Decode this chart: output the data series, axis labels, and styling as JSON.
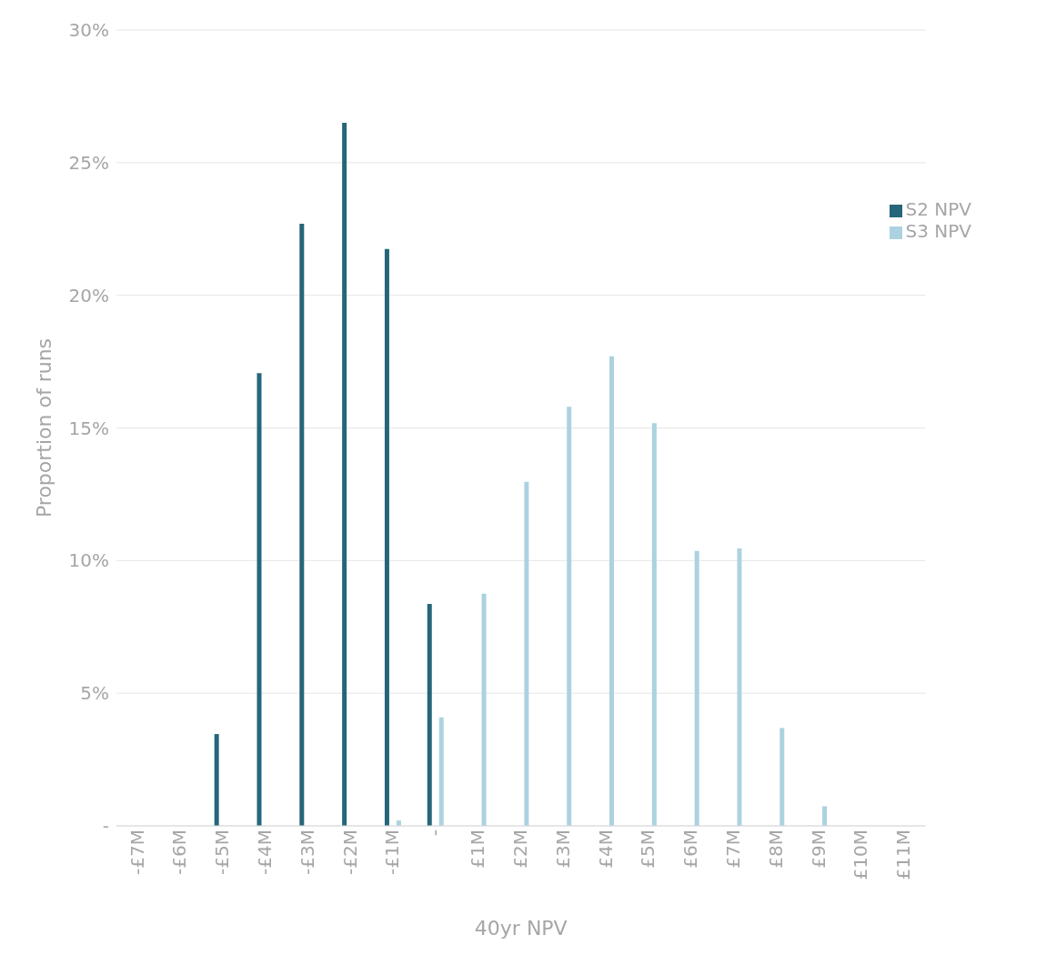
{
  "chart_data": {
    "type": "bar",
    "xlabel": "40yr NPV",
    "ylabel": "Proportion of runs",
    "categories": [
      "-£7M",
      "-£6M",
      "-£5M",
      "-£4M",
      "-£3M",
      "-£2M",
      "-£1M",
      "-",
      "£1M",
      "£2M",
      "£3M",
      "£4M",
      "£5M",
      "£6M",
      "£7M",
      "£8M",
      "£9M",
      "£10M",
      "£11M"
    ],
    "series": [
      {
        "name": "S2 NPV",
        "color": "#26667a",
        "values": [
          0,
          0,
          3.46,
          17.07,
          22.7,
          26.5,
          21.75,
          8.37,
          0,
          0,
          0,
          0,
          0,
          0,
          0,
          0,
          0,
          0,
          0
        ]
      },
      {
        "name": "S3 NPV",
        "color": "#acd2df",
        "values": [
          0,
          0,
          0,
          0,
          0,
          0,
          0.2,
          4.09,
          8.75,
          12.97,
          15.8,
          17.7,
          15.18,
          10.36,
          10.46,
          3.69,
          0.74,
          0,
          0
        ]
      }
    ],
    "ylim": [
      0,
      30
    ],
    "yticks": [
      {
        "value": 0,
        "label": "-"
      },
      {
        "value": 5,
        "label": "5%"
      },
      {
        "value": 10,
        "label": "10%"
      },
      {
        "value": 15,
        "label": "15%"
      },
      {
        "value": 20,
        "label": "20%"
      },
      {
        "value": 25,
        "label": "25%"
      },
      {
        "value": 30,
        "label": "30%"
      }
    ],
    "grid": "y",
    "legend": "top right"
  }
}
